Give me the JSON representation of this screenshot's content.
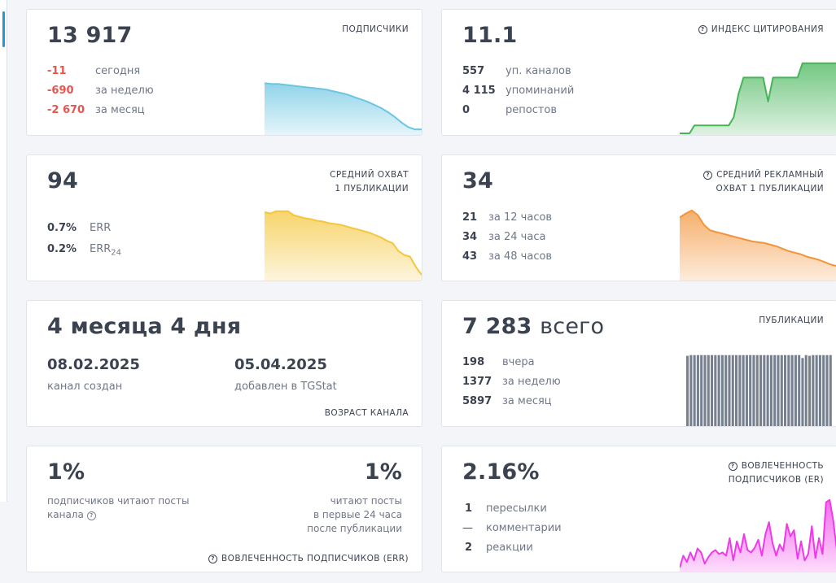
{
  "cards": {
    "subscribers": {
      "value": "13 917",
      "title": "ПОДПИСЧИКИ",
      "rows": [
        {
          "num": "-11",
          "label": "сегодня"
        },
        {
          "num": "-690",
          "label": "за неделю"
        },
        {
          "num": "-2 670",
          "label": "за месяц"
        }
      ],
      "color": "#6cc6e2",
      "chart_data": {
        "type": "area",
        "values": [
          63,
          62,
          62,
          61,
          60,
          59,
          58,
          57,
          56,
          55,
          53,
          51,
          49,
          46,
          43,
          40,
          36,
          32,
          27,
          21,
          14,
          8,
          5,
          5
        ]
      }
    },
    "citation": {
      "value": "11.1",
      "title": "ИНДЕКС ЦИТИРОВАНИЯ",
      "icon": "question-circle-icon",
      "rows": [
        {
          "num": "557",
          "label": "уп. каналов"
        },
        {
          "num": "4 115",
          "label": "упоминаний"
        },
        {
          "num": "0",
          "label": "репостов"
        }
      ],
      "color": "#45b558",
      "chart_data": {
        "type": "area",
        "values": [
          0,
          0,
          0,
          10,
          10,
          10,
          10,
          10,
          10,
          10,
          10,
          20,
          50,
          70,
          70,
          70,
          70,
          70,
          40,
          70,
          70,
          70,
          70,
          70,
          70,
          88,
          88,
          88,
          88,
          88,
          88,
          88,
          88
        ]
      }
    },
    "reach": {
      "value": "94",
      "title_lines": [
        "СРЕДНИЙ ОХВАТ",
        "1 ПУБЛИКАЦИИ"
      ],
      "rows": [
        {
          "num": "0.7%",
          "label": "ERR",
          "sub": ""
        },
        {
          "num": "0.2%",
          "label": "ERR",
          "sub": "24"
        }
      ],
      "color": "#f5c63b",
      "chart_data": {
        "type": "area",
        "values": [
          84,
          82,
          85,
          85,
          85,
          80,
          78,
          76,
          75,
          73,
          72,
          70,
          69,
          68,
          66,
          64,
          62,
          60,
          58,
          55,
          52,
          48,
          45,
          35,
          30,
          28,
          15,
          5
        ]
      }
    },
    "ad_reach": {
      "value": "34",
      "title_lines": [
        "СРЕДНИЙ РЕКЛАМНЫЙ",
        "ОХВАТ 1 ПУБЛИКАЦИИ"
      ],
      "icon": "question-circle-icon",
      "rows": [
        {
          "num": "21",
          "label": "за 12 часов"
        },
        {
          "num": "34",
          "label": "за 24 часа"
        },
        {
          "num": "43",
          "label": "за 48 часов"
        }
      ],
      "color": "#f3943a",
      "chart_data": {
        "type": "area",
        "values": [
          77,
          82,
          86,
          80,
          68,
          61,
          59,
          57,
          55,
          53,
          51,
          49,
          47,
          46,
          45,
          43,
          41,
          38,
          35,
          33,
          31,
          28,
          26,
          24,
          21,
          18,
          16
        ]
      }
    },
    "age": {
      "value": "4 месяца 4 дня",
      "created_date": "08.02.2025",
      "created_label": "канал создан",
      "added_date": "05.04.2025",
      "added_label": "добавлен в TGStat",
      "footer": "ВОЗРАСТ КАНАЛА"
    },
    "publications": {
      "value": "7 283",
      "unit": "всего",
      "title": "ПУБЛИКАЦИИ",
      "rows": [
        {
          "num": "198",
          "label": "вчера"
        },
        {
          "num": "1377",
          "label": "за неделю"
        },
        {
          "num": "5897",
          "label": "за месяц"
        }
      ],
      "color": "#76808e",
      "chart_data": {
        "type": "bar",
        "values": [
          96,
          97,
          97,
          97,
          97,
          97,
          97,
          97,
          97,
          97,
          97,
          97,
          97,
          97,
          97,
          97,
          97,
          97,
          97,
          97,
          97,
          97,
          97,
          97,
          97,
          97,
          97,
          97,
          97,
          97,
          97,
          97,
          97,
          93,
          97,
          96,
          97,
          97,
          97,
          97,
          97,
          97
        ]
      }
    },
    "err": {
      "left_value": "1%",
      "left_lines": [
        "подписчиков читают посты",
        "канала"
      ],
      "right_value": "1%",
      "right_lines": [
        "читают посты",
        "в первые 24 часа",
        "после публикации"
      ],
      "footer": "ВОВЛЕЧЕННОСТЬ ПОДПИСЧИКОВ (ERR)",
      "icon": "question-circle-icon"
    },
    "er": {
      "value": "2.16%",
      "title_lines": [
        "ВОВЛЕЧЕННОСТЬ",
        "ПОДПИСЧИКОВ (ER)"
      ],
      "icon": "question-circle-icon",
      "rows": [
        {
          "num": "1",
          "label": "пересылки"
        },
        {
          "num": "—",
          "label": "комментарии"
        },
        {
          "num": "2",
          "label": "реакции"
        }
      ],
      "color": "#ef3ae8",
      "chart_data": {
        "type": "area",
        "values": [
          3,
          18,
          10,
          22,
          12,
          27,
          22,
          8,
          16,
          22,
          25,
          20,
          22,
          18,
          40,
          12,
          36,
          22,
          45,
          25,
          22,
          28,
          38,
          18,
          45,
          60,
          34,
          18,
          32,
          24,
          58,
          42,
          50,
          14,
          36,
          12,
          20,
          55,
          15,
          40,
          20,
          85,
          88,
          62,
          25
        ]
      }
    }
  }
}
